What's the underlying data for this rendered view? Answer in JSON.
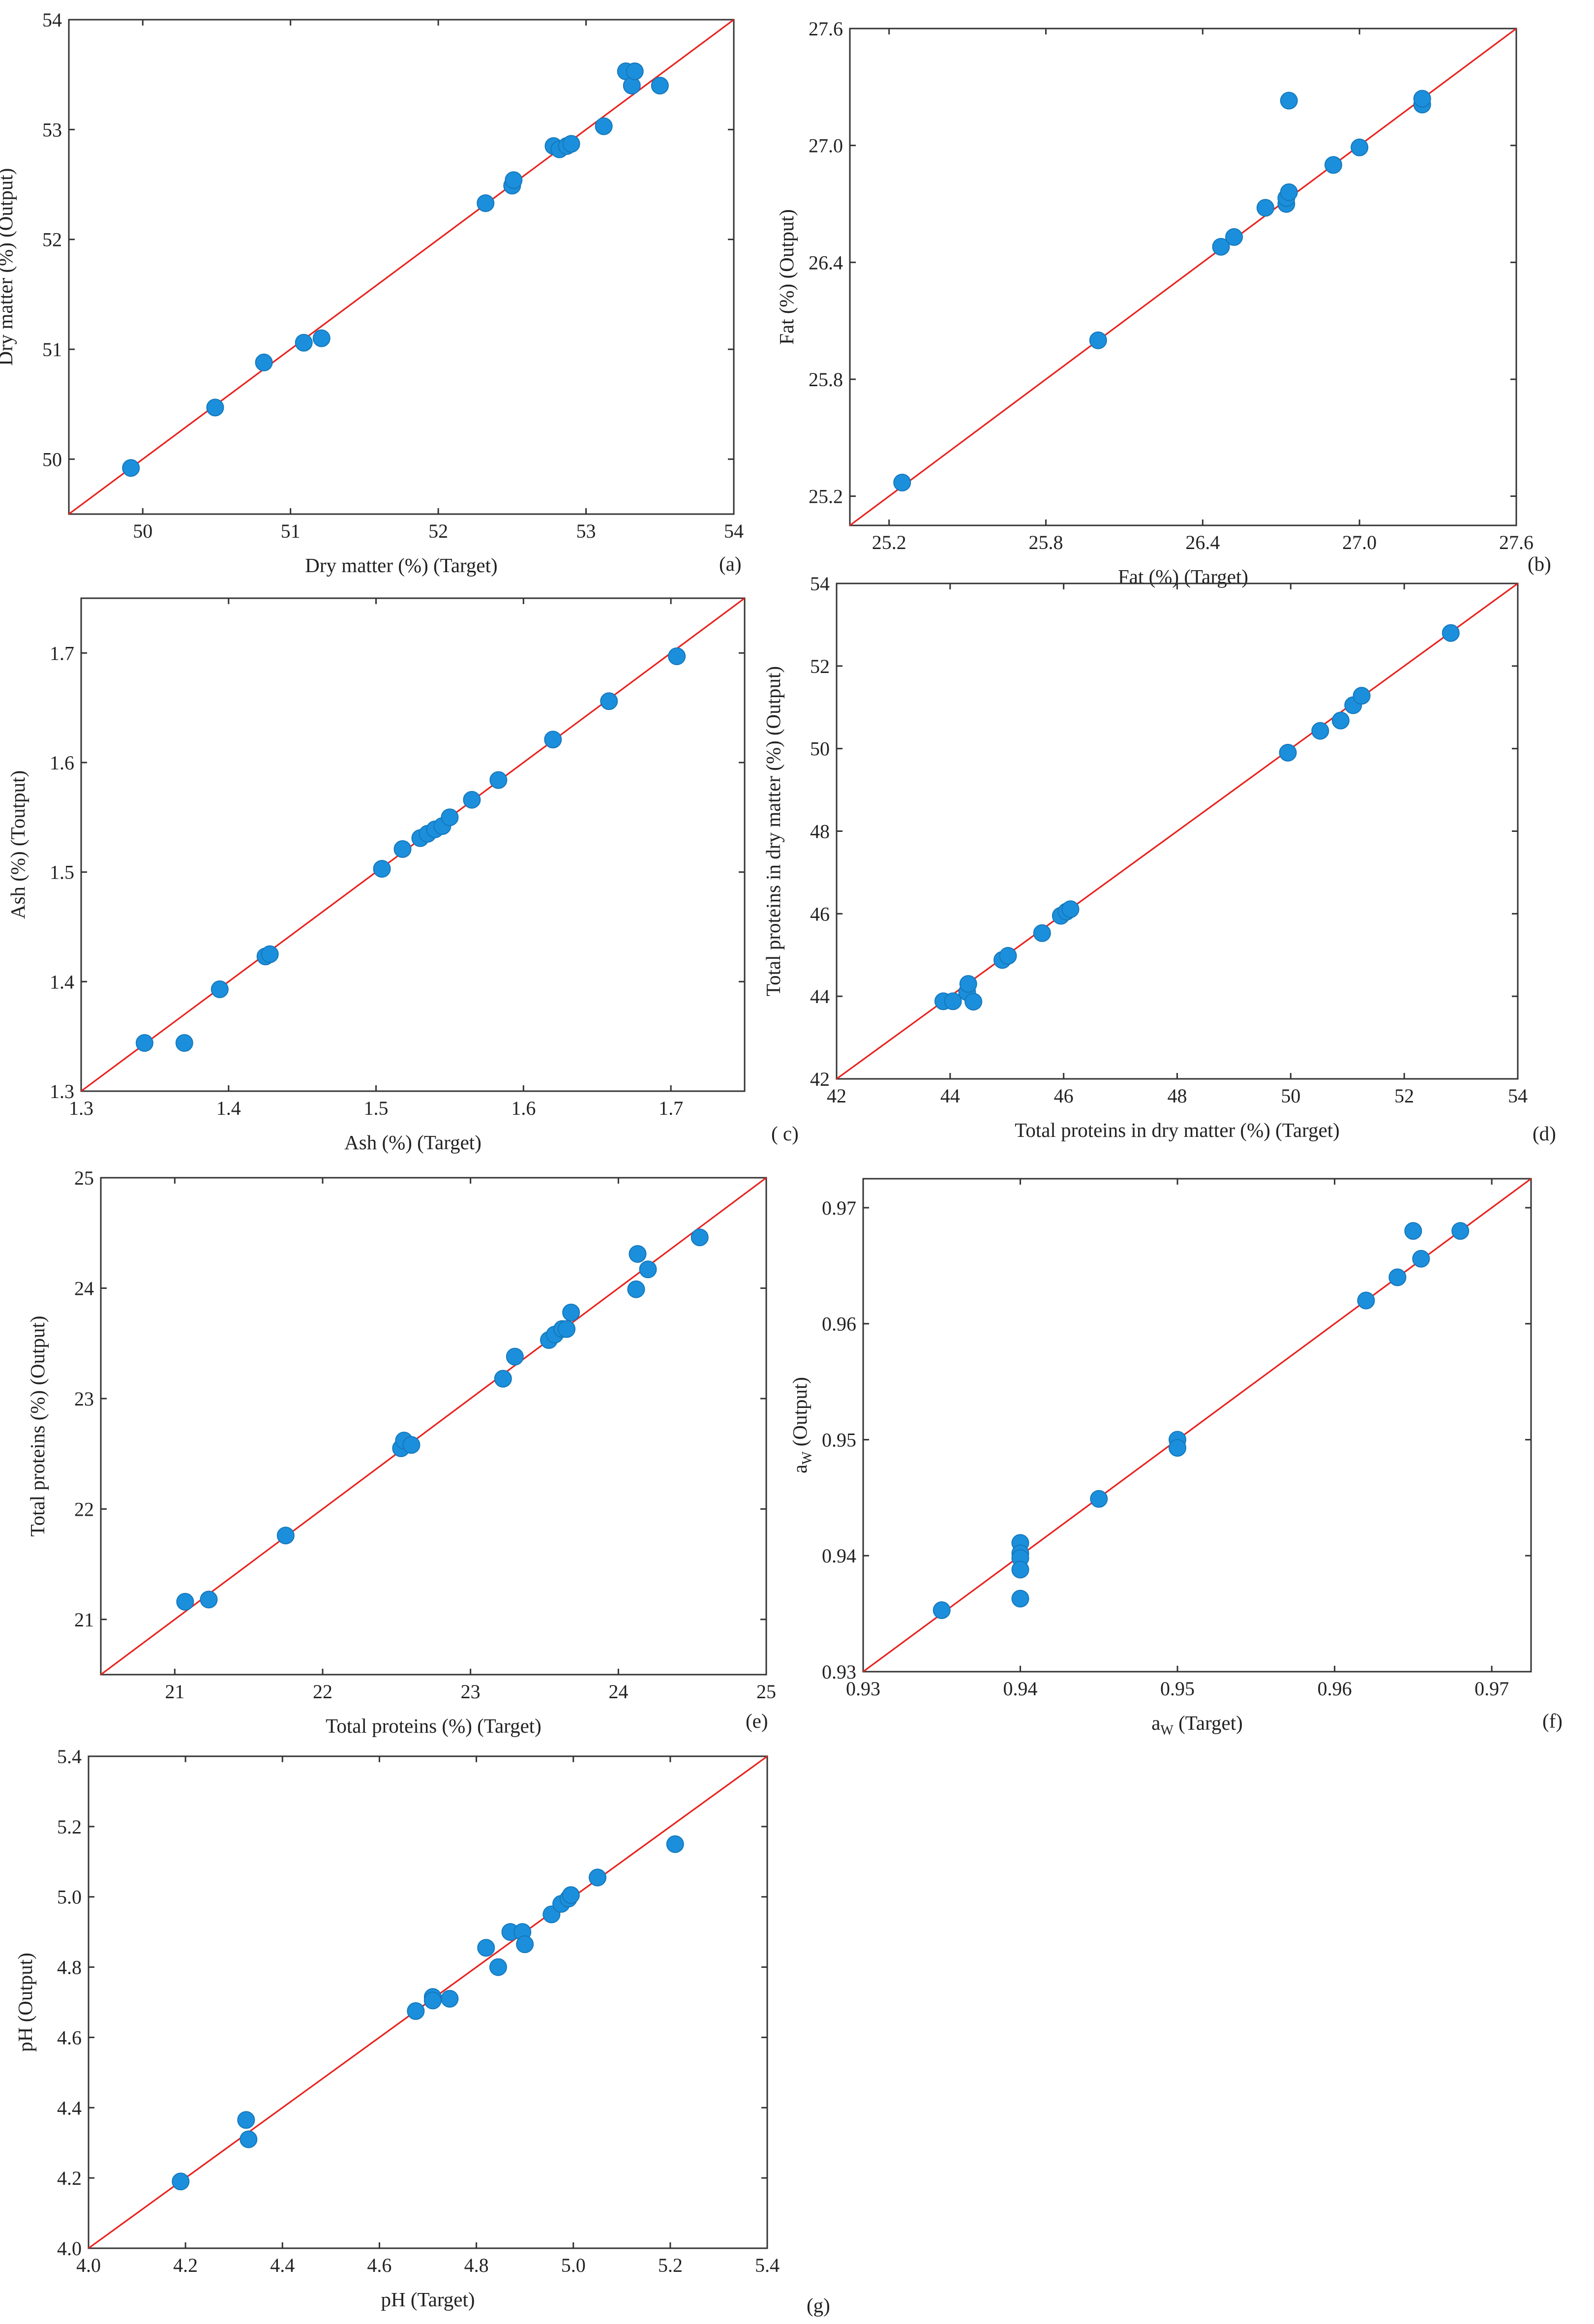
{
  "figure": {
    "description": ""
  },
  "colors": {
    "point": "#1b8fdb",
    "point_edge": "#1577bb",
    "identity_line": "#e8231e",
    "axes": "#333333"
  },
  "chart_data": [
    {
      "type": "scatter",
      "panel": "(a)",
      "title": "",
      "xlabel": "Dry matter (%) (Target)",
      "ylabel": "Dry matter (%) (Output)",
      "xlim": [
        49.5,
        54
      ],
      "ylim": [
        49.5,
        54
      ],
      "xticks": [
        "50",
        "51",
        "52",
        "53",
        "54"
      ],
      "yticks": [
        "50",
        "51",
        "52",
        "53",
        "54"
      ],
      "xtick_values": [
        50,
        51,
        52,
        53,
        54
      ],
      "ytick_values": [
        50,
        51,
        52,
        53,
        54
      ],
      "reference_line": "y = x",
      "x": [
        49.92,
        50.49,
        50.82,
        51.09,
        51.21,
        52.32,
        52.5,
        52.51,
        52.78,
        52.82,
        52.87,
        52.9,
        53.12,
        53.27,
        53.31,
        53.33,
        53.5
      ],
      "y": [
        49.92,
        50.47,
        50.88,
        51.06,
        51.1,
        52.33,
        52.49,
        52.54,
        52.85,
        52.82,
        52.85,
        52.87,
        53.03,
        53.53,
        53.4,
        53.53,
        53.4
      ]
    },
    {
      "type": "scatter",
      "panel": "(b)",
      "title": "",
      "xlabel": "Fat (%) (Target)",
      "ylabel": "Fat (%) (Output)",
      "xlim": [
        25.05,
        27.6
      ],
      "ylim": [
        25.05,
        27.6
      ],
      "xticks": [
        "25.2",
        "25.8",
        "26.4",
        "27.0",
        "27.6"
      ],
      "yticks": [
        "25.2",
        "25.8",
        "26.4",
        "27.0",
        "27.6"
      ],
      "xtick_values": [
        25.2,
        25.8,
        26.4,
        27.0,
        27.6
      ],
      "ytick_values": [
        25.2,
        25.8,
        26.4,
        27.0,
        27.6
      ],
      "reference_line": "y = x",
      "x": [
        25.25,
        26.0,
        26.47,
        26.52,
        26.64,
        26.72,
        26.72,
        26.73,
        26.73,
        26.9,
        27.0,
        27.24,
        27.24
      ],
      "y": [
        25.27,
        26.0,
        26.48,
        26.53,
        26.68,
        26.7,
        26.73,
        26.76,
        27.23,
        26.9,
        26.99,
        27.21,
        27.24
      ]
    },
    {
      "type": "scatter",
      "panel": "( c)",
      "title": "",
      "xlabel": "Ash (%) (Target)",
      "ylabel": "Ash (%) (Toutput)",
      "xlim": [
        1.3,
        1.75
      ],
      "ylim": [
        1.3,
        1.75
      ],
      "xticks": [
        "1.3",
        "1.4",
        "1.5",
        "1.6",
        "1.7"
      ],
      "yticks": [
        "1.3",
        "1.4",
        "1.5",
        "1.6",
        "1.7"
      ],
      "xtick_values": [
        1.3,
        1.4,
        1.5,
        1.6,
        1.7
      ],
      "ytick_values": [
        1.3,
        1.4,
        1.5,
        1.6,
        1.7
      ],
      "reference_line": "y = x",
      "x": [
        1.343,
        1.37,
        1.394,
        1.425,
        1.428,
        1.504,
        1.518,
        1.53,
        1.535,
        1.54,
        1.545,
        1.55,
        1.565,
        1.583,
        1.62,
        1.658,
        1.704
      ],
      "y": [
        1.344,
        1.344,
        1.393,
        1.423,
        1.425,
        1.503,
        1.521,
        1.531,
        1.535,
        1.539,
        1.542,
        1.55,
        1.566,
        1.584,
        1.621,
        1.656,
        1.697
      ]
    },
    {
      "type": "scatter",
      "panel": "(d)",
      "title": "",
      "xlabel": "Total proteins in dry matter (%) (Target)",
      "ylabel": "Total proteins in dry matter (%) (Output)",
      "xlim": [
        42,
        54
      ],
      "ylim": [
        42,
        54
      ],
      "xticks": [
        "42",
        "44",
        "46",
        "48",
        "50",
        "52",
        "54"
      ],
      "yticks": [
        "42",
        "44",
        "46",
        "48",
        "50",
        "52",
        "54"
      ],
      "xtick_values": [
        42,
        44,
        46,
        48,
        50,
        52,
        54
      ],
      "ytick_values": [
        42,
        44,
        46,
        48,
        50,
        52,
        54
      ],
      "reference_line": "y = x",
      "x": [
        43.88,
        44.05,
        44.3,
        44.32,
        44.41,
        44.92,
        45.02,
        45.62,
        45.95,
        46.05,
        46.12,
        49.95,
        50.52,
        50.88,
        51.1,
        51.25,
        52.82
      ],
      "y": [
        43.88,
        43.88,
        44.1,
        44.3,
        43.87,
        44.88,
        44.98,
        45.53,
        45.95,
        46.05,
        46.11,
        49.9,
        50.43,
        50.68,
        51.05,
        51.28,
        52.8
      ]
    },
    {
      "type": "scatter",
      "panel": "(e)",
      "title": "",
      "xlabel": "Total proteins (%) (Target)",
      "ylabel": "Total proteins (%) (Output)",
      "xlim": [
        20.5,
        25
      ],
      "ylim": [
        20.5,
        25
      ],
      "xticks": [
        "21",
        "22",
        "23",
        "24",
        "25"
      ],
      "yticks": [
        "21",
        "22",
        "23",
        "24",
        "25"
      ],
      "xtick_values": [
        21,
        22,
        23,
        24,
        25
      ],
      "ytick_values": [
        21,
        22,
        23,
        24,
        25
      ],
      "reference_line": "y = x",
      "x": [
        21.07,
        21.23,
        21.75,
        22.53,
        22.55,
        22.6,
        23.22,
        23.3,
        23.53,
        23.57,
        23.62,
        23.65,
        23.68,
        24.12,
        24.13,
        24.2,
        24.55
      ],
      "y": [
        21.16,
        21.18,
        21.76,
        22.55,
        22.62,
        22.58,
        23.18,
        23.38,
        23.53,
        23.58,
        23.63,
        23.63,
        23.78,
        23.99,
        24.31,
        24.17,
        24.46
      ]
    },
    {
      "type": "scatter",
      "panel": "(f)",
      "title": "",
      "xlabel": "aW (Target)",
      "ylabel": "aW (Output)",
      "xlim": [
        0.93,
        0.9725
      ],
      "ylim": [
        0.93,
        0.9725
      ],
      "xticks": [
        "0.93",
        "0.94",
        "0.95",
        "0.96",
        "0.97"
      ],
      "yticks": [
        "0.93",
        "0.94",
        "0.95",
        "0.96",
        "0.97"
      ],
      "xtick_values": [
        0.93,
        0.94,
        0.95,
        0.96,
        0.97
      ],
      "ytick_values": [
        0.93,
        0.94,
        0.95,
        0.96,
        0.97
      ],
      "reference_line": "y = x",
      "x": [
        0.935,
        0.94,
        0.94,
        0.94,
        0.94,
        0.94,
        0.945,
        0.95,
        0.95,
        0.962,
        0.964,
        0.965,
        0.9655,
        0.968
      ],
      "y": [
        0.9353,
        0.9411,
        0.9402,
        0.9398,
        0.9388,
        0.9363,
        0.9449,
        0.95,
        0.9493,
        0.962,
        0.964,
        0.968,
        0.9656,
        0.968
      ]
    },
    {
      "type": "scatter",
      "panel": "(g)",
      "title": "",
      "xlabel": "pH (Target)",
      "ylabel": "pH (Output)",
      "xlim": [
        4.0,
        5.4
      ],
      "ylim": [
        4.0,
        5.4
      ],
      "xticks": [
        "4.0",
        "4.2",
        "4.4",
        "4.6",
        "4.8",
        "5.0",
        "5.2",
        "5.4"
      ],
      "yticks": [
        "4.0",
        "4.2",
        "4.4",
        "4.6",
        "4.8",
        "5.0",
        "5.2",
        "5.4"
      ],
      "xtick_values": [
        4.0,
        4.2,
        4.4,
        4.6,
        4.8,
        5.0,
        5.2,
        5.4
      ],
      "ytick_values": [
        4.0,
        4.2,
        4.4,
        4.6,
        4.8,
        5.0,
        5.2,
        5.4
      ],
      "reference_line": "y = x",
      "x": [
        4.19,
        4.325,
        4.33,
        4.675,
        4.71,
        4.71,
        4.745,
        4.82,
        4.845,
        4.87,
        4.895,
        4.9,
        4.955,
        4.975,
        4.99,
        4.995,
        5.05,
        5.21
      ],
      "y": [
        4.19,
        4.365,
        4.31,
        4.675,
        4.715,
        4.705,
        4.71,
        4.855,
        4.8,
        4.9,
        4.9,
        4.865,
        4.95,
        4.98,
        4.995,
        5.005,
        5.055,
        5.15
      ]
    }
  ]
}
